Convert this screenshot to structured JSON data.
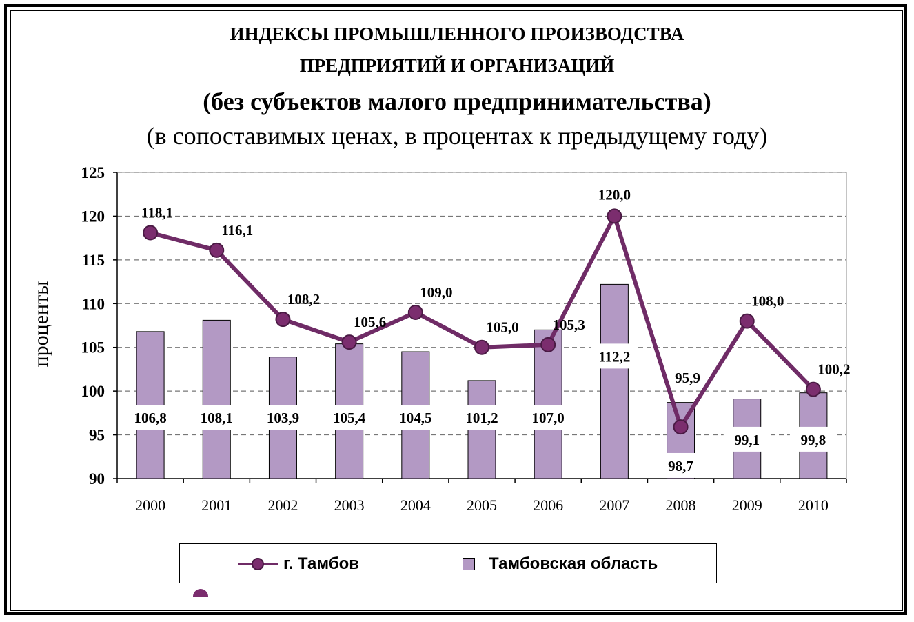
{
  "colors": {
    "line": "#6f2b66",
    "marker": "#7b2d6e",
    "marker_border": "#4a1a44",
    "bar": "#b399c4",
    "bar_border": "#000000",
    "grid": "#777777"
  },
  "chart_data": {
    "type": "bar",
    "title_lines": [
      "ИНДЕКСЫ ПРОМЫШЛЕННОГО ПРОИЗВОДСТВА",
      "ПРЕДПРИЯТИЙ И ОРГАНИЗАЦИЙ",
      "(без субъектов малого предпринимательства)",
      "(в сопоставимых ценах, в процентах к предыдущему году)"
    ],
    "ylabel": "проценты",
    "xlabel": "",
    "ylim": [
      90,
      125
    ],
    "ytick_step": 5,
    "yticks": [
      "90",
      "95",
      "100",
      "105",
      "110",
      "115",
      "120",
      "125"
    ],
    "grid": true,
    "legend_position": "bottom",
    "categories": [
      "2000",
      "2001",
      "2002",
      "2003",
      "2004",
      "2005",
      "2006",
      "2007",
      "2008",
      "2009",
      "2010"
    ],
    "series": [
      {
        "name": "г. Тамбов",
        "kind": "line",
        "values": [
          118.1,
          116.1,
          108.2,
          105.6,
          109.0,
          105.0,
          105.3,
          120.0,
          95.9,
          108.0,
          100.2
        ],
        "labels": [
          "118,1",
          "116,1",
          "108,2",
          "105,6",
          "109,0",
          "105,0",
          "105,3",
          "120,0",
          "95,9",
          "108,0",
          "100,2"
        ]
      },
      {
        "name": "Тамбовская область",
        "kind": "bar",
        "values": [
          106.8,
          108.1,
          103.9,
          105.4,
          104.5,
          101.2,
          107.0,
          112.2,
          98.7,
          99.1,
          99.8
        ],
        "labels": [
          "106,8",
          "108,1",
          "103,9",
          "105,4",
          "104,5",
          "101,2",
          "107,0",
          "112,2",
          "98,7",
          "99,1",
          "99,8"
        ]
      }
    ]
  }
}
